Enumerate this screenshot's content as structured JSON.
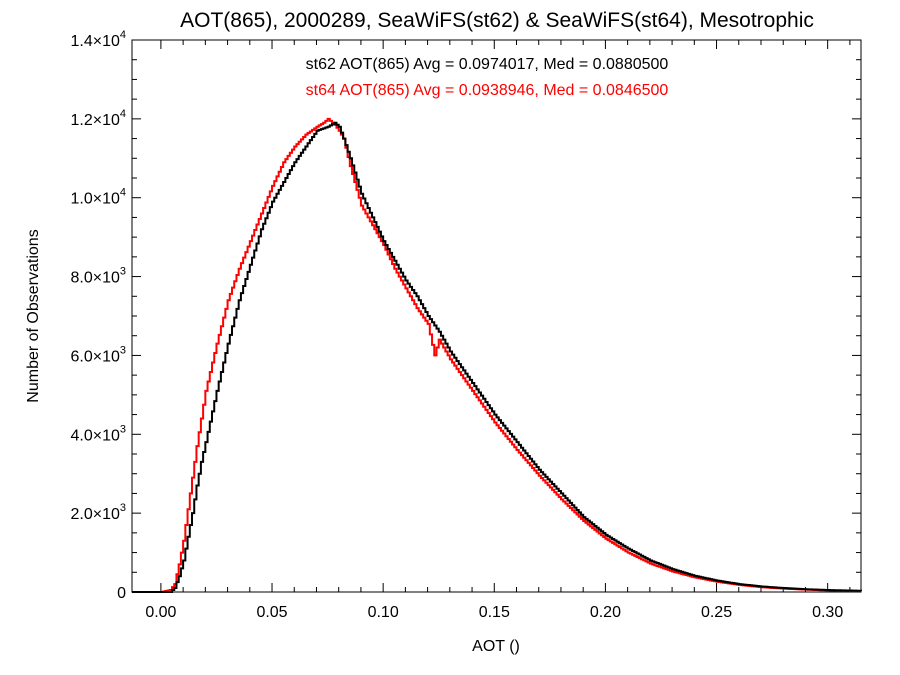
{
  "chart_data": {
    "type": "line",
    "title": "AOT(865), 2000289, SeaWiFS(st62) & SeaWiFS(st64), Mesotrophic",
    "xlabel": "AOT ()",
    "ylabel": "Number of Observations",
    "xlim": [
      -0.013,
      0.315
    ],
    "ylim": [
      0,
      14000
    ],
    "x_ticks": [
      0.0,
      0.05,
      0.1,
      0.15,
      0.2,
      0.25,
      0.3
    ],
    "x_tick_labels": [
      "0.00",
      "0.05",
      "0.10",
      "0.15",
      "0.20",
      "0.25",
      "0.30"
    ],
    "y_ticks": [
      0,
      2000,
      4000,
      6000,
      8000,
      10000,
      12000,
      14000
    ],
    "y_tick_labels": [
      {
        "mantissa": "0",
        "exponent": ""
      },
      {
        "mantissa": "2.0×10",
        "exponent": "3"
      },
      {
        "mantissa": "4.0×10",
        "exponent": "3"
      },
      {
        "mantissa": "6.0×10",
        "exponent": "3"
      },
      {
        "mantissa": "8.0×10",
        "exponent": "3"
      },
      {
        "mantissa": "1.0×10",
        "exponent": "4"
      },
      {
        "mantissa": "1.2×10",
        "exponent": "4"
      },
      {
        "mantissa": "1.4×10",
        "exponent": "4"
      }
    ],
    "grid": false,
    "legend_placement": "top-center",
    "series": [
      {
        "name": "st62",
        "color": "#000000",
        "label": "st62 AOT(865) Avg = 0.0974017, Med = 0.0880500",
        "x": [
          -0.013,
          0.0,
          0.004,
          0.006,
          0.008,
          0.01,
          0.012,
          0.014,
          0.016,
          0.018,
          0.02,
          0.025,
          0.03,
          0.035,
          0.04,
          0.045,
          0.05,
          0.055,
          0.06,
          0.065,
          0.07,
          0.075,
          0.078,
          0.08,
          0.082,
          0.085,
          0.09,
          0.095,
          0.1,
          0.105,
          0.11,
          0.115,
          0.12,
          0.125,
          0.13,
          0.135,
          0.14,
          0.145,
          0.15,
          0.16,
          0.17,
          0.18,
          0.19,
          0.2,
          0.21,
          0.22,
          0.23,
          0.24,
          0.25,
          0.26,
          0.27,
          0.28,
          0.29,
          0.3,
          0.315
        ],
        "y": [
          0,
          0,
          0,
          100,
          400,
          800,
          1400,
          2000,
          2700,
          3300,
          3800,
          5100,
          6300,
          7400,
          8300,
          9200,
          9900,
          10400,
          10900,
          11300,
          11700,
          11800,
          11900,
          11800,
          11500,
          11000,
          10100,
          9500,
          8900,
          8400,
          7900,
          7500,
          7000,
          6600,
          6100,
          5700,
          5300,
          4900,
          4500,
          3800,
          3100,
          2500,
          1900,
          1450,
          1100,
          800,
          580,
          410,
          290,
          200,
          140,
          100,
          70,
          50,
          30
        ]
      },
      {
        "name": "st64",
        "color": "#ff0000",
        "label": "st64 AOT(865) Avg = 0.0938946, Med = 0.0846500",
        "x": [
          -0.013,
          0.0,
          0.004,
          0.006,
          0.008,
          0.01,
          0.012,
          0.014,
          0.016,
          0.018,
          0.02,
          0.025,
          0.03,
          0.035,
          0.04,
          0.045,
          0.05,
          0.055,
          0.06,
          0.065,
          0.07,
          0.073,
          0.075,
          0.078,
          0.08,
          0.082,
          0.085,
          0.09,
          0.095,
          0.1,
          0.105,
          0.11,
          0.115,
          0.12,
          0.123,
          0.125,
          0.13,
          0.135,
          0.14,
          0.145,
          0.15,
          0.16,
          0.17,
          0.18,
          0.19,
          0.2,
          0.21,
          0.22,
          0.23,
          0.24,
          0.25,
          0.26,
          0.27,
          0.28,
          0.29,
          0.3,
          0.315
        ],
        "y": [
          0,
          0,
          50,
          200,
          700,
          1300,
          2100,
          2900,
          3700,
          4400,
          5100,
          6300,
          7400,
          8200,
          8900,
          9600,
          10300,
          10900,
          11300,
          11600,
          11800,
          11900,
          12000,
          11850,
          11700,
          11500,
          10800,
          9800,
          9300,
          8800,
          8200,
          7700,
          7200,
          6800,
          6000,
          6400,
          5900,
          5500,
          5100,
          4700,
          4300,
          3600,
          2950,
          2350,
          1800,
          1350,
          1000,
          720,
          520,
          370,
          260,
          180,
          120,
          85,
          60,
          40,
          25
        ]
      }
    ]
  }
}
